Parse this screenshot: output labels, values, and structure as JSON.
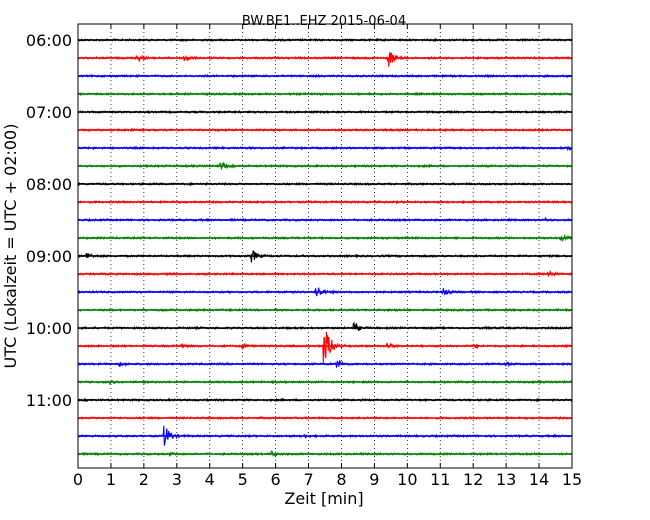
{
  "chart_data": {
    "type": "line",
    "title": "BW.BE1..EHZ 2015-06-04",
    "xlabel": "Zeit  [min]",
    "ylabel": "UTC (Lokalzeit = UTC + 02:00)",
    "xlim": [
      0,
      15
    ],
    "x_ticks": [
      "0",
      "1",
      "2",
      "3",
      "4",
      "5",
      "6",
      "7",
      "8",
      "9",
      "10",
      "11",
      "12",
      "13",
      "14",
      "15"
    ],
    "y_tick_labels": [
      "06:00",
      "07:00",
      "08:00",
      "09:00",
      "10:00",
      "11:00"
    ],
    "grid": "vertical dotted",
    "line_colors": [
      "#000000",
      "#ff0000",
      "#0000ff",
      "#008000"
    ],
    "series": [
      {
        "start": "06:00",
        "events": []
      },
      {
        "start": "06:15",
        "events": [
          {
            "x": 1.8,
            "amp": 0.35
          },
          {
            "x": 3.25,
            "amp": 0.4
          },
          {
            "x": 9.45,
            "amp": 0.75
          }
        ]
      },
      {
        "start": "06:30",
        "events": []
      },
      {
        "start": "06:45",
        "events": []
      },
      {
        "start": "07:00",
        "events": []
      },
      {
        "start": "07:15",
        "events": []
      },
      {
        "start": "07:30",
        "events": [
          {
            "x": 14.9,
            "amp": 0.1
          }
        ]
      },
      {
        "start": "07:45",
        "events": [
          {
            "x": 4.35,
            "amp": 0.35
          }
        ]
      },
      {
        "start": "08:00",
        "events": []
      },
      {
        "start": "08:15",
        "events": []
      },
      {
        "start": "08:30",
        "events": [
          {
            "x": 14.2,
            "amp": 0.1
          }
        ]
      },
      {
        "start": "08:45",
        "events": [
          {
            "x": 14.7,
            "amp": 0.45
          }
        ]
      },
      {
        "start": "09:00",
        "events": [
          {
            "x": 0.3,
            "amp": 0.3
          },
          {
            "x": 5.3,
            "amp": 0.55
          }
        ]
      },
      {
        "start": "09:15",
        "events": [
          {
            "x": 14.3,
            "amp": 0.35
          }
        ]
      },
      {
        "start": "09:30",
        "events": [
          {
            "x": 7.25,
            "amp": 0.6
          },
          {
            "x": 11.1,
            "amp": 0.35
          }
        ]
      },
      {
        "start": "09:45",
        "events": [
          {
            "x": 2.0,
            "amp": 0.1
          }
        ]
      },
      {
        "start": "10:00",
        "events": [
          {
            "x": 8.4,
            "amp": 0.45
          },
          {
            "x": 12.4,
            "amp": 0.15
          }
        ]
      },
      {
        "start": "10:15",
        "events": [
          {
            "x": 3.1,
            "amp": 0.3
          },
          {
            "x": 5.0,
            "amp": 0.25
          },
          {
            "x": 7.5,
            "amp": 1.6
          },
          {
            "x": 9.4,
            "amp": 0.3
          },
          {
            "x": 12.1,
            "amp": 0.15
          }
        ]
      },
      {
        "start": "10:30",
        "events": [
          {
            "x": 1.3,
            "amp": 0.15
          },
          {
            "x": 7.9,
            "amp": 0.35
          },
          {
            "x": 13.0,
            "amp": 0.15
          }
        ]
      },
      {
        "start": "10:45",
        "events": [
          {
            "x": 1.0,
            "amp": 0.1
          }
        ]
      },
      {
        "start": "11:00",
        "events": []
      },
      {
        "start": "11:15",
        "events": []
      },
      {
        "start": "11:30",
        "events": [
          {
            "x": 2.65,
            "amp": 0.9
          },
          {
            "x": 6.9,
            "amp": 0.1
          }
        ]
      },
      {
        "start": "11:45",
        "events": [
          {
            "x": 2.8,
            "amp": 0.15
          },
          {
            "x": 5.9,
            "amp": 0.2
          }
        ]
      }
    ]
  }
}
